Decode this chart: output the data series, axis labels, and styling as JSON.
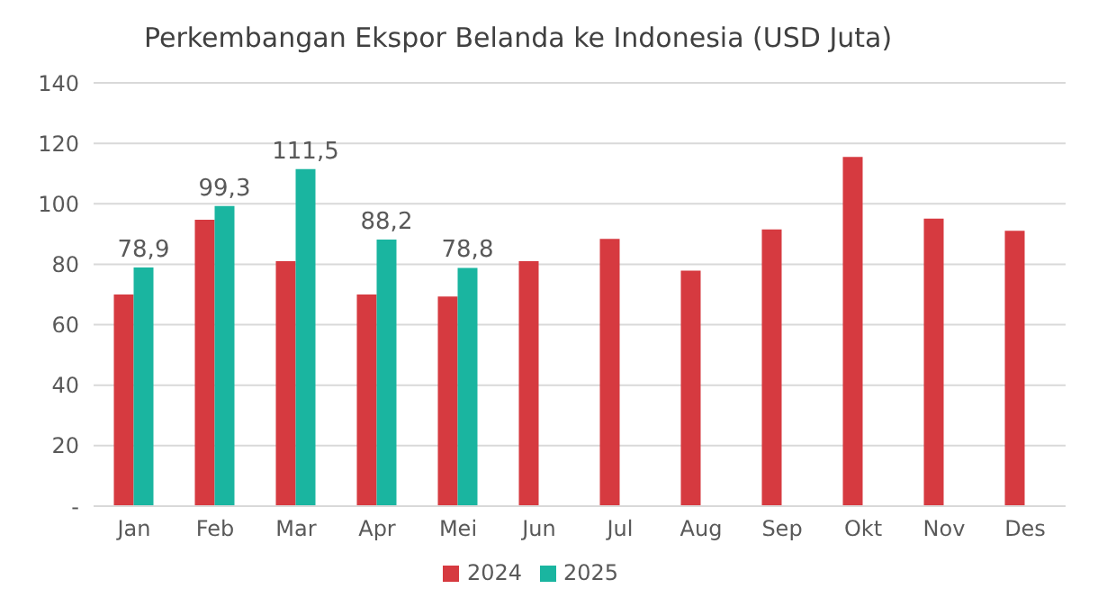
{
  "chart_data": {
    "type": "bar",
    "title": "Perkembangan Ekspor Belanda ke Indonesia (USD Juta)",
    "categories": [
      "Jan",
      "Feb",
      "Mar",
      "Apr",
      "Mei",
      "Jun",
      "Jul",
      "Aug",
      "Sep",
      "Okt",
      "Nov",
      "Des"
    ],
    "series": [
      {
        "name": "2024",
        "color": "#d63a40",
        "values": [
          70,
          94.7,
          81,
          70,
          69.3,
          81,
          88.4,
          77.9,
          91.5,
          115.5,
          95.1,
          91.1
        ]
      },
      {
        "name": "2025",
        "color": "#1ab5a0",
        "values": [
          78.9,
          99.3,
          111.5,
          88.2,
          78.8,
          null,
          null,
          null,
          null,
          null,
          null,
          null
        ],
        "value_labels": [
          "78,9",
          "99,3",
          "111,5",
          "88,2",
          "78,8",
          null,
          null,
          null,
          null,
          null,
          null,
          null
        ]
      }
    ],
    "ylim": [
      0,
      140
    ],
    "yticks": [
      {
        "value": 0,
        "label": "-"
      },
      20,
      40,
      60,
      80,
      100,
      120,
      140
    ],
    "grid": "y",
    "legend": "bottom"
  }
}
